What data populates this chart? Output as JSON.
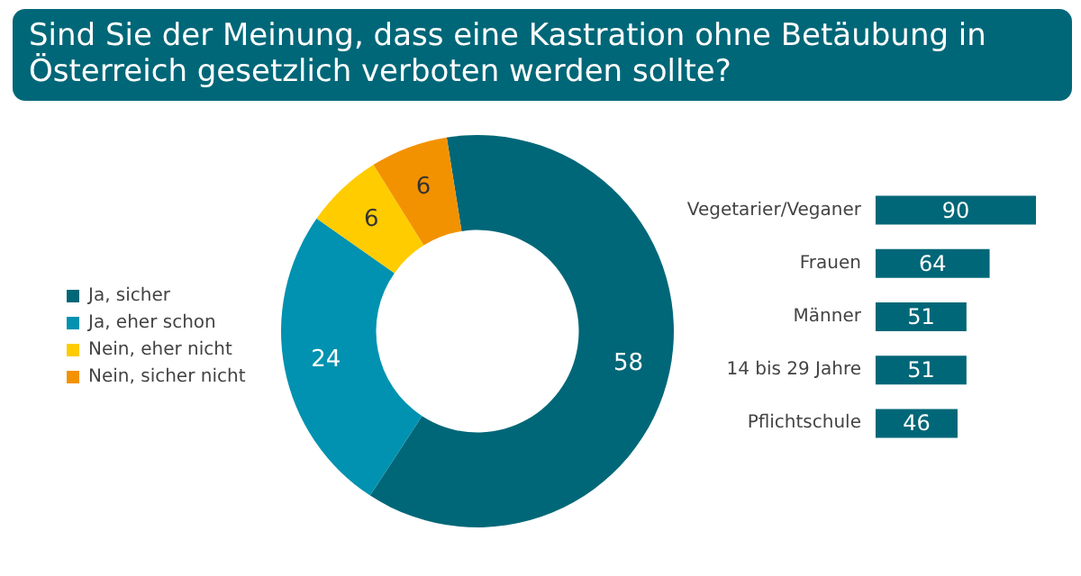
{
  "chart_data": [
    {
      "type": "donut",
      "title": "Sind Sie der Meinung, dass eine Kastration ohne Betäubung in Österreich gesetzlich verboten werden sollte?",
      "categories": [
        "Ja, sicher",
        "Ja, eher schon",
        "Nein, eher nicht",
        "Nein, sicher nicht"
      ],
      "values": [
        58,
        24,
        6,
        6
      ],
      "colors": [
        "#006778",
        "#0092b0",
        "#ffcc00",
        "#f39200"
      ],
      "data_labels": true,
      "legend": "left"
    },
    {
      "type": "bar",
      "orientation": "horizontal",
      "categories": [
        "Vegetarier/Veganer",
        "Frauen",
        "Männer",
        "14 bis 29 Jahre",
        "Pflichtschule"
      ],
      "values": [
        90,
        64,
        51,
        51,
        46
      ],
      "color": "#006778",
      "data_labels": true
    }
  ]
}
